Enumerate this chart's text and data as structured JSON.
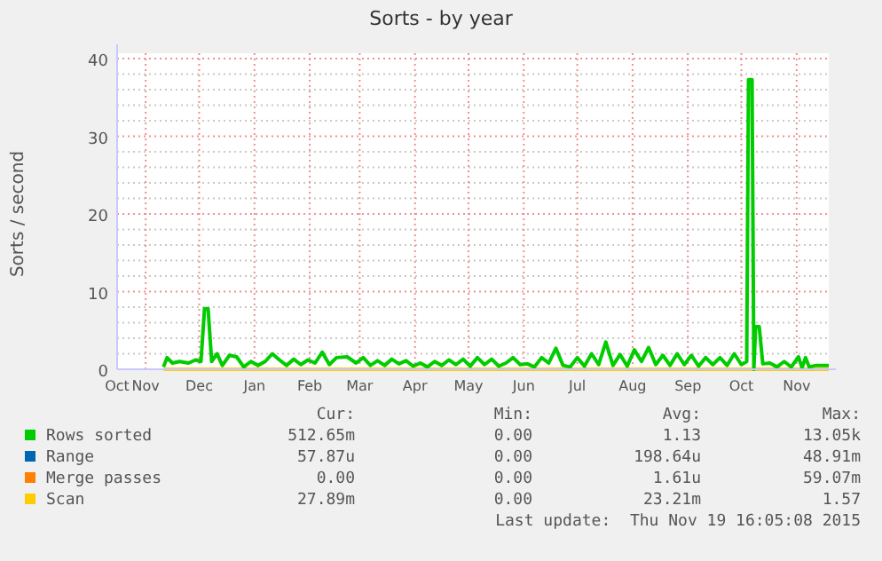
{
  "chart_data": {
    "type": "line",
    "title": "Sorts - by year",
    "ylabel": "Sorts / second",
    "xlim": [
      "2014-10-16",
      "2015-11-19"
    ],
    "xticks": [
      {
        "value": "2014-10-16",
        "label": "Oct"
      },
      {
        "value": "2014-11-01",
        "label": "Nov"
      },
      {
        "value": "2014-12-01",
        "label": "Dec"
      },
      {
        "value": "2015-01-01",
        "label": "Jan"
      },
      {
        "value": "2015-02-01",
        "label": "Feb"
      },
      {
        "value": "2015-03-01",
        "label": "Mar"
      },
      {
        "value": "2015-04-01",
        "label": "Apr"
      },
      {
        "value": "2015-05-01",
        "label": "May"
      },
      {
        "value": "2015-06-01",
        "label": "Jun"
      },
      {
        "value": "2015-07-01",
        "label": "Jul"
      },
      {
        "value": "2015-08-01",
        "label": "Aug"
      },
      {
        "value": "2015-09-01",
        "label": "Sep"
      },
      {
        "value": "2015-10-01",
        "label": "Oct"
      },
      {
        "value": "2015-11-01",
        "label": "Nov"
      }
    ],
    "ylim": [
      0,
      40
    ],
    "yticks": [
      0,
      10,
      20,
      30,
      40
    ],
    "grid": true,
    "legend": "bottom",
    "series": [
      {
        "name": "Range",
        "color": "#0066b3"
      },
      {
        "name": "Merge passes",
        "color": "#ff8000"
      },
      {
        "name": "Scan",
        "color": "#ffcc00",
        "x": [
          "2014-11-11",
          "2015-11-19"
        ],
        "values": [
          0,
          0
        ]
      },
      {
        "name": "Rows sorted",
        "color": "#00cc00",
        "x": [
          "2014-11-11",
          "2014-11-13",
          "2014-11-16",
          "2014-11-20",
          "2014-11-25",
          "2014-11-29",
          "2014-12-02",
          "2014-12-04",
          "2014-12-06",
          "2014-12-08",
          "2014-12-11",
          "2014-12-14",
          "2014-12-18",
          "2014-12-22",
          "2014-12-26",
          "2014-12-30",
          "2015-01-03",
          "2015-01-07",
          "2015-01-11",
          "2015-01-15",
          "2015-01-19",
          "2015-01-23",
          "2015-01-27",
          "2015-01-31",
          "2015-02-04",
          "2015-02-08",
          "2015-02-12",
          "2015-02-16",
          "2015-02-22",
          "2015-02-27",
          "2015-03-03",
          "2015-03-07",
          "2015-03-11",
          "2015-03-15",
          "2015-03-19",
          "2015-03-23",
          "2015-03-27",
          "2015-03-31",
          "2015-04-04",
          "2015-04-08",
          "2015-04-12",
          "2015-04-16",
          "2015-04-20",
          "2015-04-24",
          "2015-04-28",
          "2015-05-02",
          "2015-05-06",
          "2015-05-10",
          "2015-05-14",
          "2015-05-18",
          "2015-05-22",
          "2015-05-26",
          "2015-05-30",
          "2015-06-03",
          "2015-06-07",
          "2015-06-11",
          "2015-06-15",
          "2015-06-19",
          "2015-06-23",
          "2015-06-27",
          "2015-07-01",
          "2015-07-05",
          "2015-07-09",
          "2015-07-13",
          "2015-07-17",
          "2015-07-21",
          "2015-07-25",
          "2015-07-29",
          "2015-08-02",
          "2015-08-06",
          "2015-08-10",
          "2015-08-14",
          "2015-08-18",
          "2015-08-22",
          "2015-08-26",
          "2015-08-30",
          "2015-09-03",
          "2015-09-07",
          "2015-09-11",
          "2015-09-15",
          "2015-09-19",
          "2015-09-23",
          "2015-09-27",
          "2015-10-01",
          "2015-10-04",
          "2015-10-05",
          "2015-10-07",
          "2015-10-08",
          "2015-10-09",
          "2015-10-11",
          "2015-10-13",
          "2015-10-17",
          "2015-10-21",
          "2015-10-25",
          "2015-10-29",
          "2015-11-02",
          "2015-11-04",
          "2015-11-06",
          "2015-11-08",
          "2015-11-12",
          "2015-11-19"
        ],
        "values": [
          0.3,
          1.5,
          0.8,
          1.0,
          0.8,
          1.2,
          1.0,
          7.8,
          7.8,
          1.0,
          2.0,
          0.5,
          1.8,
          1.6,
          0.3,
          1.0,
          0.5,
          1.0,
          2.0,
          1.2,
          0.5,
          1.3,
          0.6,
          1.2,
          0.8,
          2.2,
          0.6,
          1.5,
          1.6,
          0.8,
          1.5,
          0.5,
          1.1,
          0.5,
          1.3,
          0.7,
          1.1,
          0.4,
          0.8,
          0.3,
          1.0,
          0.5,
          1.2,
          0.6,
          1.3,
          0.4,
          1.5,
          0.6,
          1.3,
          0.4,
          0.8,
          1.5,
          0.6,
          0.7,
          0.3,
          1.5,
          0.8,
          2.7,
          0.5,
          0.3,
          1.5,
          0.4,
          2.0,
          0.6,
          3.5,
          0.5,
          1.9,
          0.4,
          2.5,
          1.0,
          2.8,
          0.6,
          1.8,
          0.5,
          2.0,
          0.6,
          1.8,
          0.4,
          1.5,
          0.6,
          1.5,
          0.5,
          2.0,
          0.6,
          1.0,
          37.3,
          37.3,
          0.0,
          5.5,
          5.5,
          0.7,
          0.8,
          0.3,
          1.0,
          0.3,
          1.6,
          0.2,
          1.5,
          0.3,
          0.5,
          0.5
        ]
      }
    ],
    "annotations": [
      "Cur:",
      "Min:",
      "Avg:",
      "Max:",
      "512.65m",
      "0.00",
      "1.13",
      "13.05k",
      "57.87u",
      "0.00",
      "198.64u",
      "48.91m",
      "0.00",
      "0.00",
      "1.61u",
      "59.07m",
      "27.89m",
      "0.00",
      "23.21m",
      "1.57",
      "Last update:  Thu Nov 19 16:05:08 2015"
    ]
  }
}
